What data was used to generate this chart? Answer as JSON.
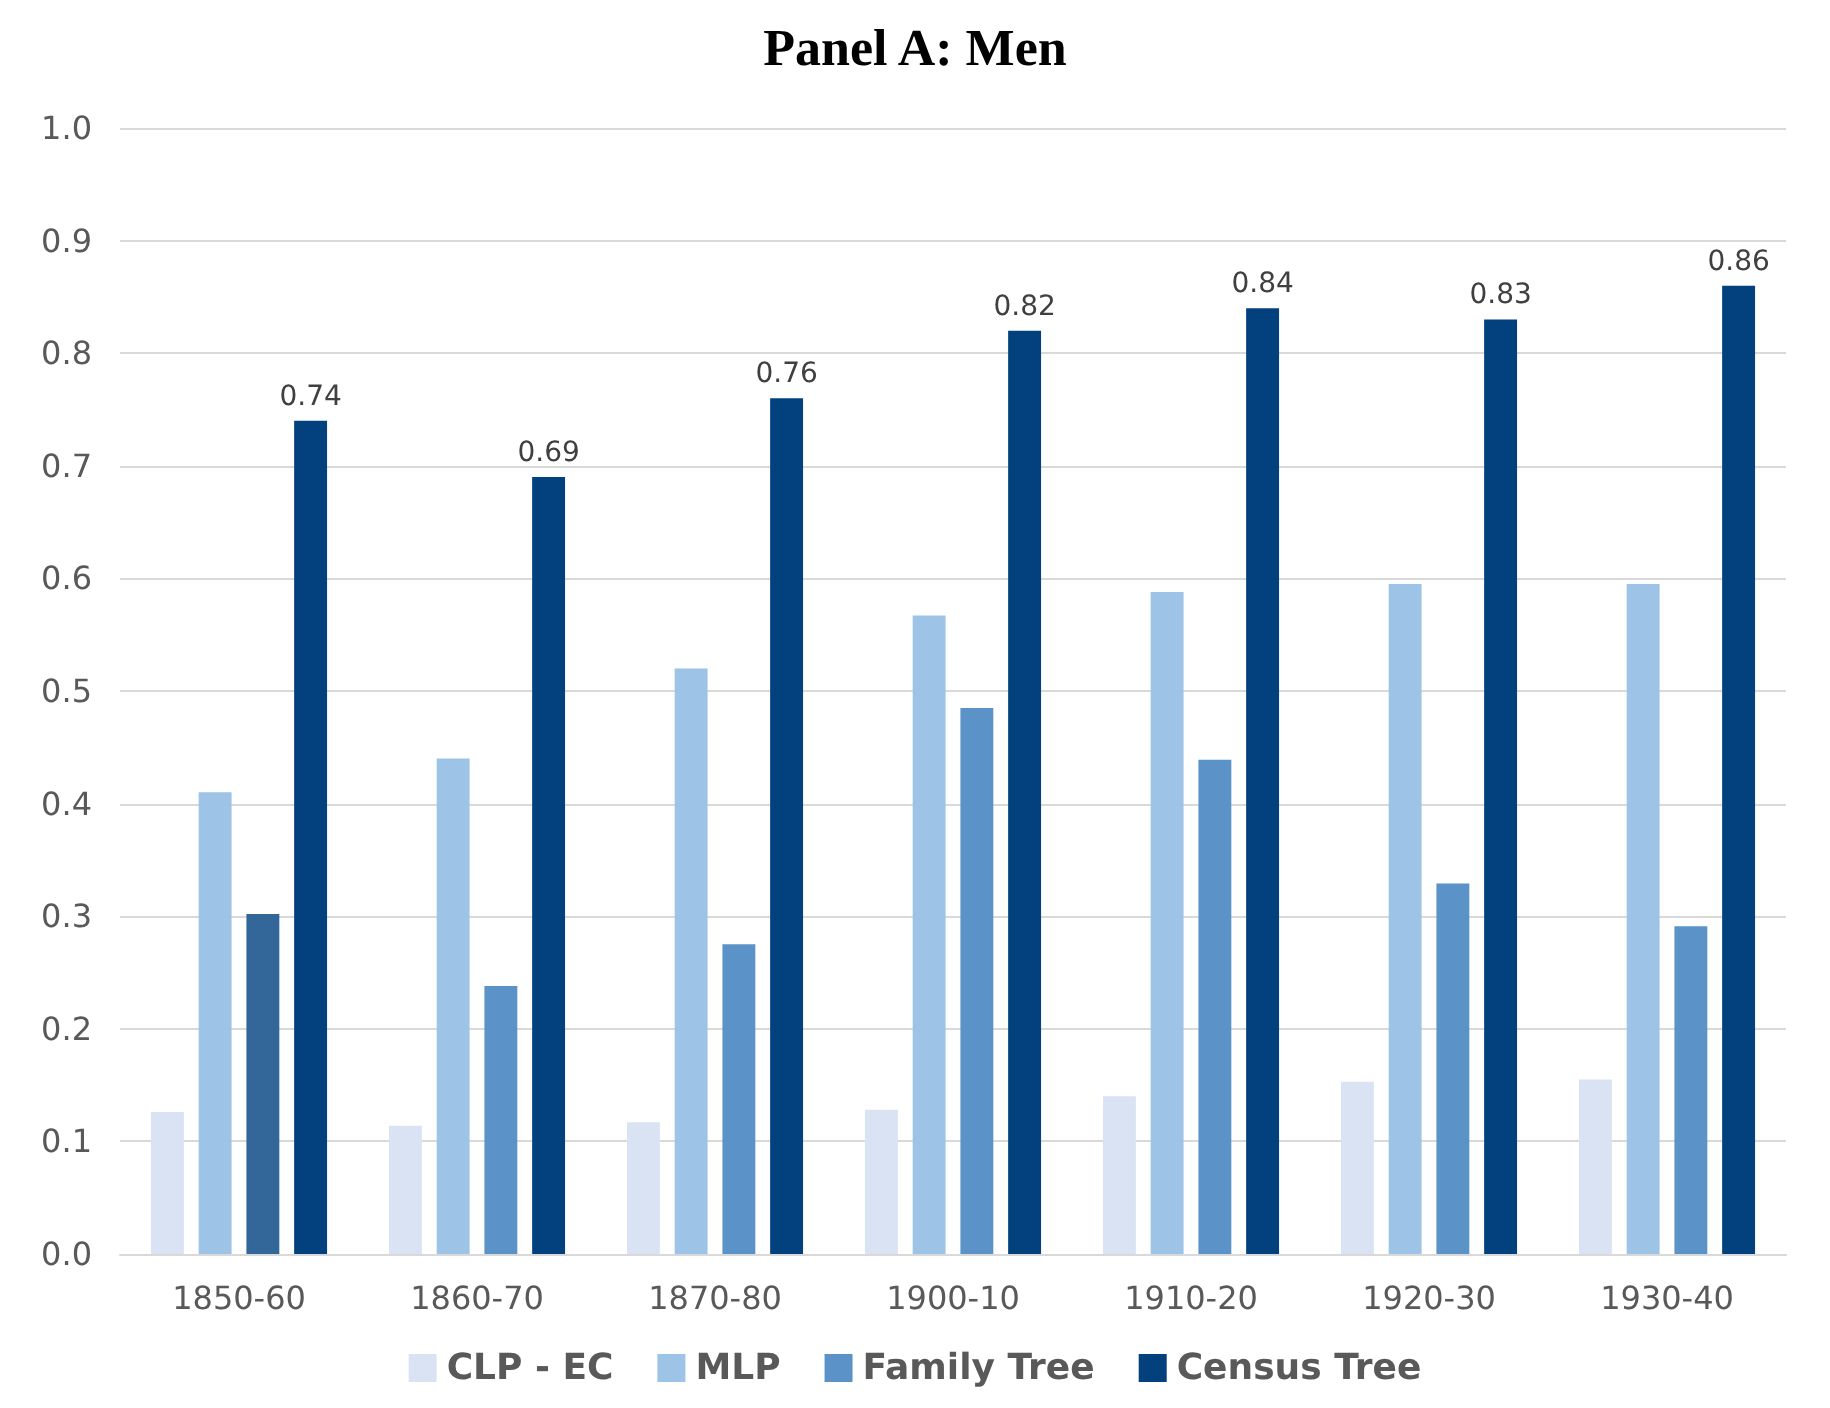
{
  "chart_data": {
    "type": "bar",
    "title": "Panel A: Men",
    "categories": [
      "1850-60",
      "1860-70",
      "1870-80",
      "1900-10",
      "1910-20",
      "1920-30",
      "1930-40"
    ],
    "series": [
      {
        "name": "CLP - EC",
        "color": "#dae3f3",
        "values": [
          0.126,
          0.114,
          0.117,
          0.128,
          0.14,
          0.153,
          0.155
        ]
      },
      {
        "name": "MLP",
        "color": "#9dc3e6",
        "values": [
          0.41,
          0.44,
          0.52,
          0.567,
          0.588,
          0.595,
          0.595
        ]
      },
      {
        "name": "Family Tree",
        "color": "#5b93c8",
        "colors": [
          "#336699",
          "#5b93c8",
          "#5b93c8",
          "#5b93c8",
          "#5b93c8",
          "#5b93c8",
          "#5b93c8"
        ],
        "values": [
          0.302,
          0.238,
          0.275,
          0.485,
          0.439,
          0.329,
          0.291
        ]
      },
      {
        "name": "Census Tree",
        "color": "#02407e",
        "values": [
          0.74,
          0.69,
          0.76,
          0.82,
          0.84,
          0.83,
          0.86
        ],
        "value_labels": [
          "0.74",
          "0.69",
          "0.76",
          "0.82",
          "0.84",
          "0.83",
          "0.86"
        ]
      }
    ],
    "ylim": [
      0,
      1
    ],
    "yticks": [
      {
        "value": 0,
        "label": "0.0"
      },
      0.1,
      0.2,
      0.3,
      0.4,
      0.5,
      0.6,
      0.7,
      0.8,
      0.9,
      {
        "value": 1,
        "label": "1.0"
      }
    ],
    "grid": "y",
    "legend": "bottom"
  }
}
